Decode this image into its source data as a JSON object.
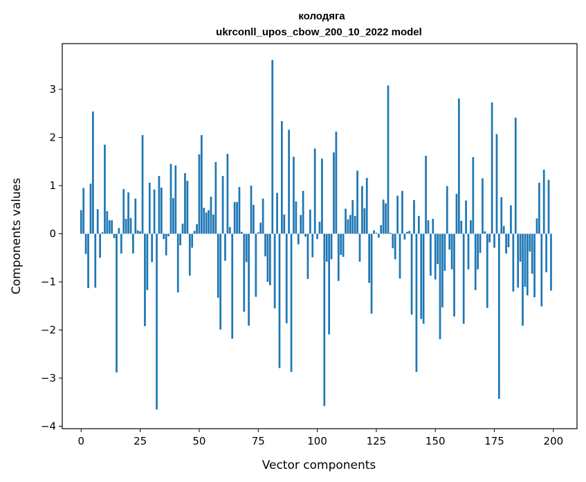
{
  "chart_data": {
    "type": "bar",
    "title": "колодяга",
    "subtitle": "ukrconll_upos_cbow_200_10_2022 model",
    "xlabel": "Vector components",
    "ylabel": "Components values",
    "xlim": [
      -8,
      210
    ],
    "ylim": [
      -4.05,
      3.95
    ],
    "xticks": [
      0,
      25,
      50,
      75,
      100,
      125,
      150,
      175,
      200
    ],
    "yticks": [
      -4,
      -3,
      -2,
      -1,
      0,
      1,
      2,
      3
    ],
    "grid": false,
    "legend": "none",
    "bar_color": "#1f77b4",
    "values": [
      0.49,
      0.95,
      -0.42,
      -1.13,
      1.04,
      2.54,
      -1.12,
      0.51,
      -0.5,
      0.03,
      1.85,
      0.47,
      0.28,
      0.28,
      -0.09,
      -2.88,
      0.12,
      -0.41,
      0.93,
      0.31,
      0.86,
      0.33,
      -0.41,
      0.73,
      0.07,
      0.05,
      2.05,
      -1.92,
      -1.17,
      1.06,
      -0.59,
      0.92,
      -3.65,
      1.2,
      0.96,
      -0.11,
      -0.45,
      -0.05,
      1.45,
      0.74,
      1.42,
      -1.22,
      -0.24,
      0.21,
      1.26,
      1.1,
      -0.87,
      -0.29,
      0.06,
      0.2,
      1.65,
      2.05,
      0.54,
      0.44,
      0.49,
      0.77,
      0.4,
      1.49,
      -1.33,
      -1.99,
      1.2,
      -0.56,
      1.66,
      0.14,
      -2.18,
      0.66,
      0.66,
      0.97,
      0.04,
      -1.62,
      -0.59,
      -1.91,
      1.0,
      0.6,
      -1.31,
      0.03,
      0.23,
      0.73,
      -0.47,
      -1.0,
      -1.07,
      3.61,
      -1.55,
      0.85,
      -2.79,
      2.34,
      0.4,
      -1.86,
      2.16,
      -2.87,
      1.6,
      0.67,
      -0.22,
      0.39,
      0.89,
      -0.06,
      -0.94,
      0.5,
      -0.49,
      1.77,
      -0.11,
      0.25,
      1.56,
      -3.58,
      -0.58,
      -2.09,
      -0.53,
      1.69,
      2.12,
      -0.98,
      -0.44,
      -0.48,
      0.52,
      0.3,
      0.39,
      0.7,
      0.37,
      1.31,
      -0.58,
      0.99,
      0.53,
      1.16,
      -1.02,
      -1.66,
      0.07,
      0.02,
      -0.08,
      0.18,
      0.71,
      0.63,
      3.08,
      0.02,
      -0.3,
      -0.53,
      0.79,
      -0.93,
      0.89,
      -0.12,
      0.04,
      0.06,
      -1.68,
      0.7,
      -2.87,
      0.37,
      -1.77,
      -1.87,
      1.62,
      0.28,
      -0.87,
      0.31,
      -0.95,
      -0.63,
      -2.19,
      -1.53,
      -0.77,
      0.99,
      -0.33,
      -0.74,
      -1.72,
      0.83,
      2.81,
      0.27,
      -1.87,
      0.69,
      -0.74,
      0.28,
      1.59,
      -1.17,
      -0.74,
      -0.4,
      1.15,
      0.05,
      -1.54,
      -0.18,
      2.73,
      -0.29,
      2.07,
      -3.43,
      0.76,
      0.16,
      -0.41,
      -0.28,
      0.59,
      -1.2,
      2.41,
      -1.12,
      -0.58,
      -1.91,
      -1.1,
      -1.28,
      -0.37,
      -0.83,
      -1.32,
      0.32,
      1.06,
      -1.51,
      1.33,
      -0.8,
      1.12,
      -1.18
    ]
  }
}
